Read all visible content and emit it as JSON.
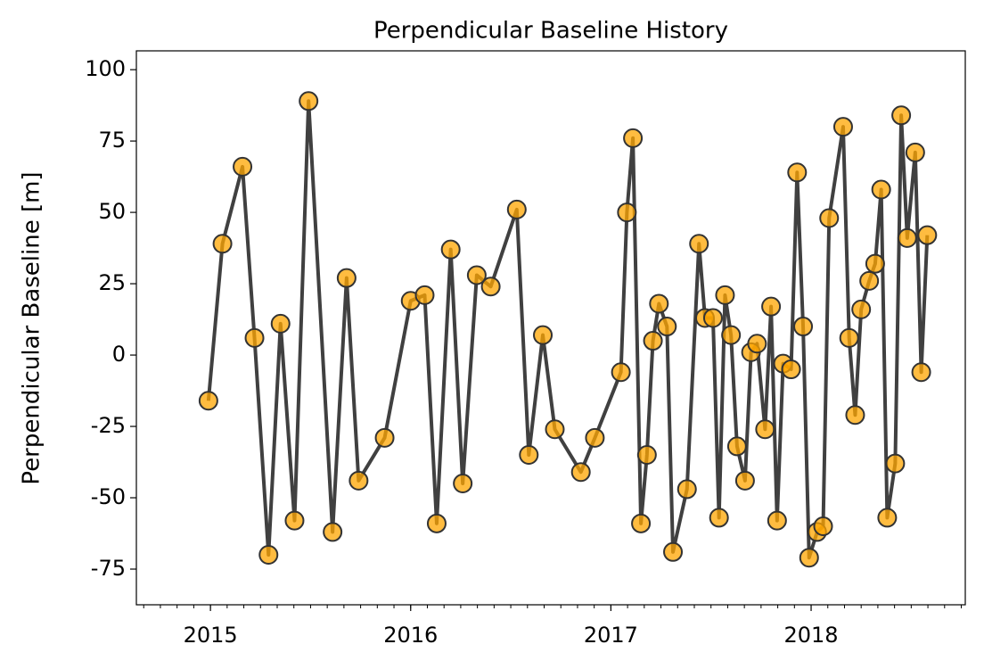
{
  "chart_data": {
    "type": "line",
    "title": "Perpendicular Baseline History",
    "y_label": "Perpendicular Baseline [m]",
    "x": [
      2014.99,
      2015.06,
      2015.16,
      2015.22,
      2015.29,
      2015.35,
      2015.42,
      2015.49,
      2015.61,
      2015.68,
      2015.74,
      2015.87,
      2016.0,
      2016.07,
      2016.13,
      2016.2,
      2016.26,
      2016.33,
      2016.4,
      2016.53,
      2016.59,
      2016.66,
      2016.72,
      2016.85,
      2016.92,
      2017.05,
      2017.08,
      2017.11,
      2017.15,
      2017.18,
      2017.21,
      2017.24,
      2017.28,
      2017.31,
      2017.38,
      2017.44,
      2017.47,
      2017.51,
      2017.54,
      2017.57,
      2017.6,
      2017.63,
      2017.67,
      2017.7,
      2017.73,
      2017.77,
      2017.8,
      2017.83,
      2017.86,
      2017.9,
      2017.93,
      2017.96,
      2017.99,
      2018.03,
      2018.06,
      2018.09,
      2018.16,
      2018.19,
      2018.22,
      2018.25,
      2018.29,
      2018.32,
      2018.35,
      2018.38,
      2018.42,
      2018.45,
      2018.48,
      2018.52,
      2018.55,
      2018.58
    ],
    "series": [
      {
        "color": "#ffa500",
        "line_color": "#404040",
        "values": [
          -16,
          39,
          66,
          6,
          -70,
          11,
          -58,
          89,
          -62,
          27,
          -44,
          -29,
          19,
          21,
          -59,
          37,
          -45,
          28,
          24,
          51,
          -35,
          7,
          -26,
          -41,
          -29,
          -6,
          50,
          76,
          -59,
          -35,
          5,
          18,
          10,
          -69,
          -47,
          39,
          13,
          13,
          -57,
          21,
          7,
          -32,
          -44,
          1,
          4,
          -26,
          17,
          -58,
          -3,
          -5,
          64,
          10,
          -71,
          -62,
          -60,
          48,
          80,
          6,
          -21,
          16,
          26,
          32,
          58,
          -57,
          -38,
          84,
          41,
          71,
          -6,
          42
        ]
      }
    ],
    "xlim": [
      2014.63,
      2018.77
    ],
    "xticks": [
      2015,
      2016,
      2017,
      2018
    ],
    "ylim": [
      -87.5,
      106.6
    ],
    "yticks": [
      -75,
      -50,
      -25,
      0,
      25,
      50,
      75,
      100
    ]
  }
}
